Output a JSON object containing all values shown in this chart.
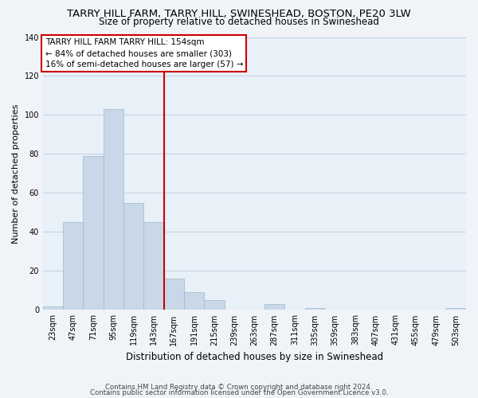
{
  "title": "TARRY HILL FARM, TARRY HILL, SWINESHEAD, BOSTON, PE20 3LW",
  "subtitle": "Size of property relative to detached houses in Swineshead",
  "xlabel": "Distribution of detached houses by size in Swineshead",
  "ylabel": "Number of detached properties",
  "bin_labels": [
    "23sqm",
    "47sqm",
    "71sqm",
    "95sqm",
    "119sqm",
    "143sqm",
    "167sqm",
    "191sqm",
    "215sqm",
    "239sqm",
    "263sqm",
    "287sqm",
    "311sqm",
    "335sqm",
    "359sqm",
    "383sqm",
    "407sqm",
    "431sqm",
    "455sqm",
    "479sqm",
    "503sqm"
  ],
  "bar_values": [
    2,
    45,
    79,
    103,
    55,
    45,
    16,
    9,
    5,
    0,
    0,
    3,
    0,
    1,
    0,
    0,
    0,
    0,
    0,
    0,
    1
  ],
  "bar_color": "#c8d8e8",
  "bar_edge_color": "#a0b8cc",
  "vline_x": 5.5,
  "vline_color": "#cc0000",
  "ylim": [
    0,
    140
  ],
  "yticks": [
    0,
    20,
    40,
    60,
    80,
    100,
    120,
    140
  ],
  "annotation_title": "TARRY HILL FARM TARRY HILL: 154sqm",
  "annotation_line1": "← 84% of detached houses are smaller (303)",
  "annotation_line2": "16% of semi-detached houses are larger (57) →",
  "footer1": "Contains HM Land Registry data © Crown copyright and database right 2024.",
  "footer2": "Contains public sector information licensed under the Open Government Licence v3.0.",
  "bg_color": "#f0f4f8",
  "plot_bg_color": "#e8f0f8",
  "grid_color": "#c8d4e0",
  "box_edge_color": "#cc0000",
  "title_fontsize": 9.5,
  "subtitle_fontsize": 8.5,
  "ylabel_fontsize": 8,
  "xlabel_fontsize": 8.5,
  "tick_fontsize": 7,
  "annotation_fontsize": 7.5,
  "footer_fontsize": 6.2
}
